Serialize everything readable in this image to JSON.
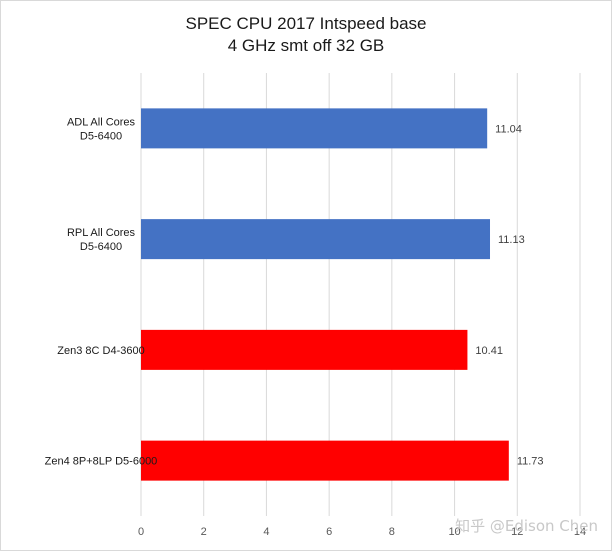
{
  "chart_data": {
    "type": "bar",
    "orientation": "horizontal",
    "title": [
      "SPEC CPU 2017 Intspeed base",
      "4 GHz smt off 32 GB"
    ],
    "categories": [
      [
        "ADL All Cores",
        "D5-6400"
      ],
      [
        "RPL All Cores",
        "D5-6400"
      ],
      [
        "Zen3 8C D4-3600"
      ],
      [
        "Zen4 8P+8LP D5-6000"
      ]
    ],
    "values": [
      11.04,
      11.13,
      10.41,
      11.73
    ],
    "data_labels": [
      "11.04",
      "11.13",
      "10.41",
      "11.73"
    ],
    "colors": [
      "#4472c4",
      "#4472c4",
      "#ff0000",
      "#ff0000"
    ],
    "xlim": [
      0,
      14
    ],
    "xticks": [
      0,
      2,
      4,
      6,
      8,
      10,
      12,
      14
    ],
    "grid": true,
    "legend": "none"
  },
  "watermark": "知乎 @Edison Chen"
}
